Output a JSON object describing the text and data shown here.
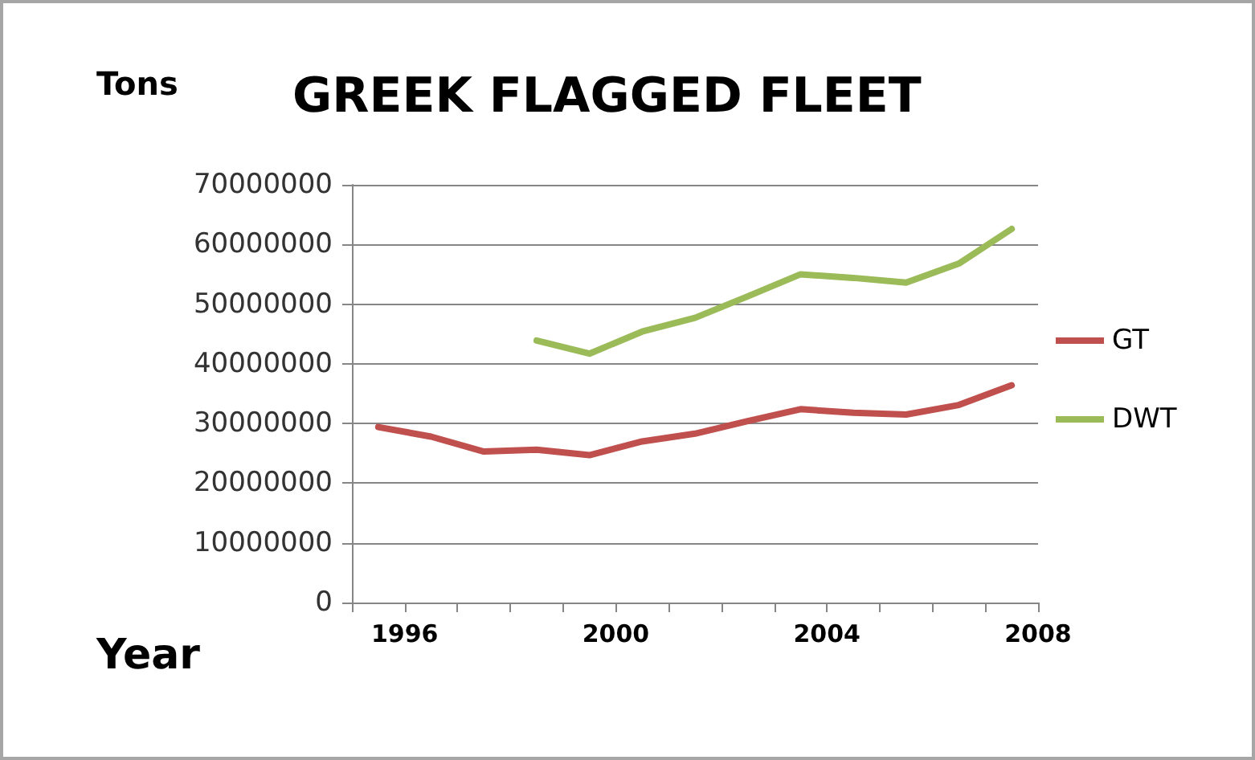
{
  "chart_data": {
    "type": "line",
    "title": "GREEK FLAGGED FLEET",
    "ylabel": "Tons",
    "xlabel": "Year",
    "x": [
      1995.5,
      1996.5,
      1997.5,
      1998.5,
      1999.5,
      2000.5,
      2001.5,
      2002.5,
      2003.5,
      2004.5,
      2005.5,
      2006.5,
      2007.5
    ],
    "series": [
      {
        "name": "GT",
        "color": "#c0504d",
        "values": [
          29400000,
          27800000,
          25300000,
          25600000,
          24700000,
          27000000,
          28300000,
          30400000,
          32400000,
          31800000,
          31500000,
          33100000,
          36400000
        ]
      },
      {
        "name": "DWT",
        "color": "#9bbb59",
        "values": [
          null,
          null,
          null,
          43900000,
          41700000,
          45400000,
          47700000,
          51300000,
          55000000,
          54400000,
          53600000,
          56800000,
          62600000
        ]
      }
    ],
    "xlim": [
      1995,
      2008
    ],
    "xticks": [
      {
        "value": 1995,
        "label": null
      },
      1996,
      {
        "value": 1997,
        "label": null
      },
      {
        "value": 1998,
        "label": null
      },
      {
        "value": 1999,
        "label": null
      },
      2000,
      {
        "value": 2001,
        "label": null
      },
      {
        "value": 2002,
        "label": null
      },
      {
        "value": 2003,
        "label": null
      },
      2004,
      {
        "value": 2005,
        "label": null
      },
      {
        "value": 2006,
        "label": null
      },
      {
        "value": 2007,
        "label": null
      },
      2008
    ],
    "ylim": [
      0,
      70000000
    ],
    "yticks": [
      0,
      10000000,
      20000000,
      30000000,
      40000000,
      50000000,
      60000000,
      70000000
    ],
    "grid": "y",
    "legend": "right",
    "marker": "none",
    "line_style": "solid"
  }
}
